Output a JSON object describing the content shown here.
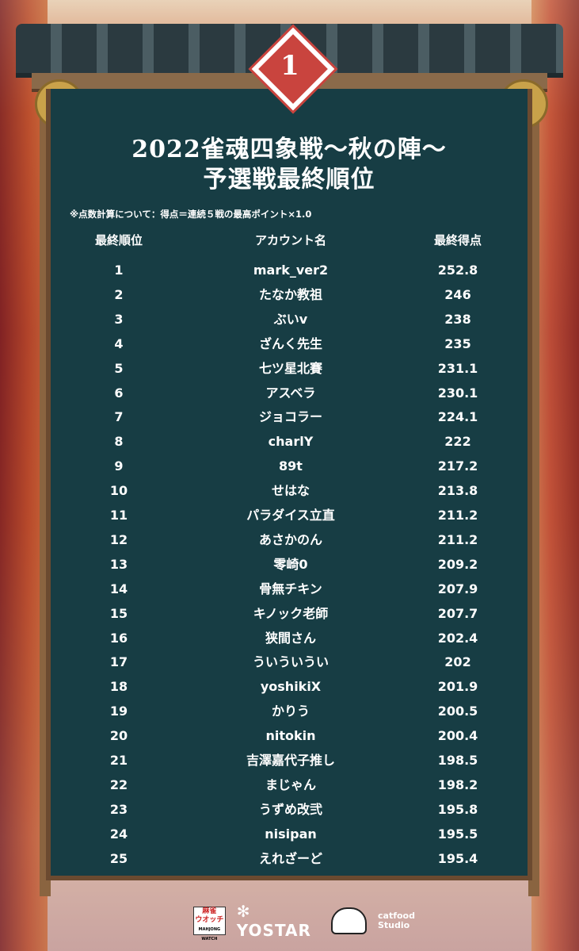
{
  "rank_badge": "1",
  "title_line1": "2022雀魂四象戦～秋の陣～",
  "title_line2": "予選戦最終順位",
  "note": "※点数計算について：得点＝連続５戦の最高ポイント×1.0",
  "headers": {
    "rank": "最終順位",
    "account": "アカウント名",
    "score": "最終得点"
  },
  "rows": [
    {
      "rank": "1",
      "name": "mark_ver2",
      "score": "252.8"
    },
    {
      "rank": "2",
      "name": "たなか教祖",
      "score": "246"
    },
    {
      "rank": "3",
      "name": "ぶいv",
      "score": "238"
    },
    {
      "rank": "4",
      "name": "ざんく先生",
      "score": "235"
    },
    {
      "rank": "5",
      "name": "七ツ星北賽",
      "score": "231.1"
    },
    {
      "rank": "6",
      "name": "アスベラ",
      "score": "230.1"
    },
    {
      "rank": "7",
      "name": "ジョコラー",
      "score": "224.1"
    },
    {
      "rank": "8",
      "name": "charlY",
      "score": "222"
    },
    {
      "rank": "9",
      "name": "89t",
      "score": "217.2"
    },
    {
      "rank": "10",
      "name": "せはな",
      "score": "213.8"
    },
    {
      "rank": "11",
      "name": "パラダイス立直",
      "score": "211.2"
    },
    {
      "rank": "12",
      "name": "あさかのん",
      "score": "211.2"
    },
    {
      "rank": "13",
      "name": "零崎0",
      "score": "209.2"
    },
    {
      "rank": "14",
      "name": "骨無チキン",
      "score": "207.9"
    },
    {
      "rank": "15",
      "name": "キノック老師",
      "score": "207.7"
    },
    {
      "rank": "16",
      "name": "狭間さん",
      "score": "202.4"
    },
    {
      "rank": "17",
      "name": "ういういうい",
      "score": "202"
    },
    {
      "rank": "18",
      "name": "yoshikiX",
      "score": "201.9"
    },
    {
      "rank": "19",
      "name": "かりう",
      "score": "200.5"
    },
    {
      "rank": "20",
      "name": "nitokin",
      "score": "200.4"
    },
    {
      "rank": "21",
      "name": "吉澤嘉代子推し",
      "score": "198.5"
    },
    {
      "rank": "22",
      "name": "まじゃん",
      "score": "198.2"
    },
    {
      "rank": "23",
      "name": "うずめ改弐",
      "score": "195.8"
    },
    {
      "rank": "24",
      "name": "nisipan",
      "score": "195.5"
    },
    {
      "rank": "25",
      "name": "えれざーど",
      "score": "195.4"
    }
  ],
  "logos": {
    "mahjong_watch": "麻雀ウオッチ MAHJONG WATCH",
    "yostar": "YOSTAR",
    "catfood": "catfood studio"
  },
  "colors": {
    "board": "#173d44",
    "badge": "#c9443e",
    "text": "#ffffff"
  }
}
